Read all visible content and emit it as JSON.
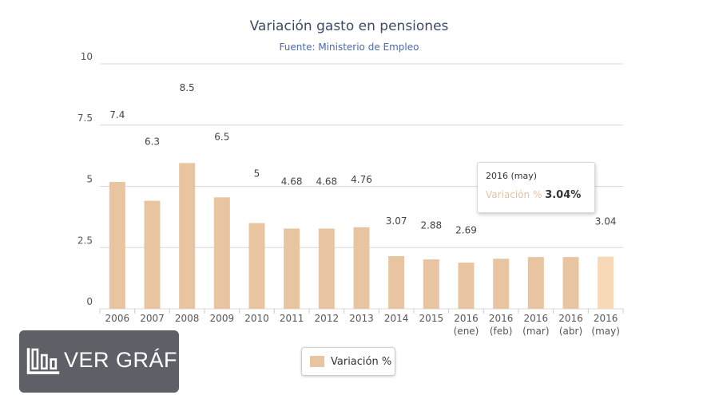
{
  "chart_data": {
    "type": "bar",
    "title": "Variación gasto en pensiones",
    "subtitle": "Fuente: Ministerio de Empleo",
    "categories": [
      [
        "2006",
        ""
      ],
      [
        "2007",
        ""
      ],
      [
        "2008",
        ""
      ],
      [
        "2009",
        ""
      ],
      [
        "2010",
        ""
      ],
      [
        "2011",
        ""
      ],
      [
        "2012",
        ""
      ],
      [
        "2013",
        ""
      ],
      [
        "2014",
        ""
      ],
      [
        "2015",
        ""
      ],
      [
        "2016",
        "(ene)"
      ],
      [
        "2016",
        "(feb)"
      ],
      [
        "2016",
        "(mar)"
      ],
      [
        "2016",
        "(abr)"
      ],
      [
        "2016",
        "(may)"
      ]
    ],
    "values": [
      7.4,
      6.3,
      8.5,
      6.5,
      5,
      4.68,
      4.68,
      4.76,
      3.07,
      2.88,
      2.69,
      2.92,
      3.02,
      3.02,
      3.04
    ],
    "data_labels": [
      "7.4",
      "6.3",
      "8.5",
      "6.5",
      "5",
      "4.68",
      "4.68",
      "4.76",
      "3.07",
      "2.88",
      "2.69",
      "",
      "",
      "",
      "3.04"
    ],
    "yticks": [
      "0",
      "2.5",
      "5",
      "7.5",
      "10"
    ],
    "ylim": [
      0,
      10
    ],
    "xlabel": "",
    "ylabel": "",
    "grid": true,
    "legend": {
      "label": "Variación %",
      "placement": "bottom-center"
    },
    "series_color": "#e8c4a0",
    "highlight_color": "#f6d8b6",
    "highlight_index": 14
  },
  "tooltip": {
    "header": "2016 (may)",
    "series": "Variación %",
    "value": "3.04%"
  },
  "badge": {
    "label": "VER GRÁFICO"
  }
}
